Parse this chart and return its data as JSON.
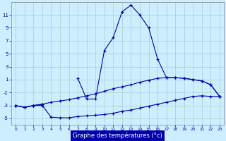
{
  "xlabel": "Graphe des températures (°c)",
  "bg_color": "#cceeff",
  "grid_color": "#aacccc",
  "line_color": "#0000aa",
  "x": [
    0,
    1,
    2,
    3,
    4,
    5,
    6,
    7,
    8,
    9,
    10,
    11,
    12,
    13,
    14,
    15,
    16,
    17,
    18,
    19,
    20,
    21,
    22,
    23
  ],
  "line1": [
    -3.0,
    -3.3,
    -3.0,
    -3.0,
    -4.8,
    -4.9,
    -4.9,
    -4.7,
    -4.6,
    -4.5,
    -4.4,
    -4.2,
    -3.9,
    -3.7,
    -3.4,
    -3.1,
    -2.8,
    -2.5,
    -2.2,
    -1.9,
    -1.6,
    -1.5,
    -1.6,
    -1.6
  ],
  "line2": [
    -3.0,
    -3.3,
    -3.0,
    -2.8,
    -2.5,
    -2.3,
    -2.1,
    -1.8,
    -1.5,
    -1.2,
    -0.8,
    -0.4,
    -0.1,
    0.2,
    0.6,
    0.9,
    1.2,
    1.3,
    1.3,
    1.2,
    1.0,
    0.8,
    0.2,
    -1.6
  ],
  "line3_x": [
    0,
    1,
    2,
    3,
    7,
    8,
    9,
    10,
    11,
    12,
    13,
    14,
    15,
    16,
    17,
    18,
    19,
    20,
    21,
    22,
    23
  ],
  "line3_y": [
    -3.0,
    -3.3,
    -3.0,
    -2.8,
    1.2,
    -2.0,
    -2.0,
    5.5,
    7.5,
    11.5,
    12.5,
    11.0,
    9.0,
    4.2,
    1.3,
    1.3,
    1.2,
    1.0,
    0.8,
    0.2,
    -1.6
  ],
  "ylim": [
    -6,
    13
  ],
  "yticks": [
    -5,
    -3,
    -1,
    1,
    3,
    5,
    7,
    9,
    11
  ],
  "xlim": [
    -0.5,
    23.5
  ],
  "xticks": [
    0,
    1,
    2,
    3,
    4,
    5,
    6,
    7,
    8,
    9,
    10,
    11,
    12,
    13,
    14,
    15,
    16,
    17,
    18,
    19,
    20,
    21,
    22,
    23
  ]
}
